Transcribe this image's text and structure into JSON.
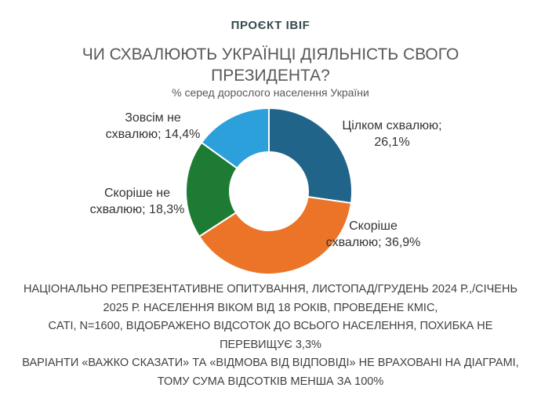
{
  "header": {
    "project_label": "ПРОЄКТ IBIF"
  },
  "title": "ЧИ СХВАЛЮЮТЬ УКРАЇНЦІ ДІЯЛЬНІСТЬ СВОГО ПРЕЗИДЕНТА?",
  "subtitle": "% серед дорослого населення України",
  "chart_data": {
    "type": "pie",
    "subtype": "donut",
    "title": "ЧИ СХВАЛЮЮТЬ УКРАЇНЦІ ДІЯЛЬНІСТЬ СВОГО ПРЕЗИДЕНТА?",
    "units_note": "% серед дорослого населення України",
    "direction": "clockwise",
    "start_angle_deg": 0,
    "inner_radius_ratio": 0.47,
    "values_sum": 95.7,
    "segments": [
      {
        "label": "Цілком схвалюю",
        "value": 26.1,
        "display": [
          "Цілком схвалюю;",
          "26,1%"
        ],
        "color": "#21648A"
      },
      {
        "label": "Скоріше схвалюю",
        "value": 36.9,
        "display": [
          "Скоріше",
          "схвалюю; 36,9%"
        ],
        "color": "#EC7428"
      },
      {
        "label": "Скоріше не схвалюю",
        "value": 18.3,
        "display": [
          "Скоріше не",
          "схвалюю; 18,3%"
        ],
        "color": "#1E7B34"
      },
      {
        "label": "Зовсім не схвалюю",
        "value": 14.4,
        "display": [
          "Зовсім не",
          "схвалюю; 14,4%"
        ],
        "color": "#2BA0DA"
      }
    ]
  },
  "footer": {
    "lines": [
      "НАЦІОНАЛЬНО РЕПРЕЗЕНТАТИВНЕ ОПИТУВАННЯ, ЛИСТОПАД/ГРУДЕНЬ 2024 Р.,/СІЧЕНЬ",
      "2025 Р. НАСЕЛЕННЯ ВІКОМ ВІД 18 РОКІВ, ПРОВЕДЕНЕ КМІС,",
      "CATI, N=1600, ВІДОБРАЖЕНО ВІДСОТОК ДО ВСЬОГО НАСЕЛЕННЯ, ПОХИБКА НЕ",
      "ПЕРЕВИЩУЄ 3,3%",
      "ВАРІАНТИ «ВАЖКО СКАЗАТИ» ТА «ВІДМОВА ВІД ВІДПОВІДІ» НЕ ВРАХОВАНІ НА ДІАГРАМІ,",
      "ТОМУ СУМА ВІДСОТКІВ МЕНША ЗА 100%"
    ]
  },
  "colors": {
    "header_text": "#364A4D",
    "title_text": "#595959",
    "label_text": "#333333",
    "footer_text": "#404040",
    "slice_border": "#FFFFFF",
    "background": "#FFFFFF"
  }
}
